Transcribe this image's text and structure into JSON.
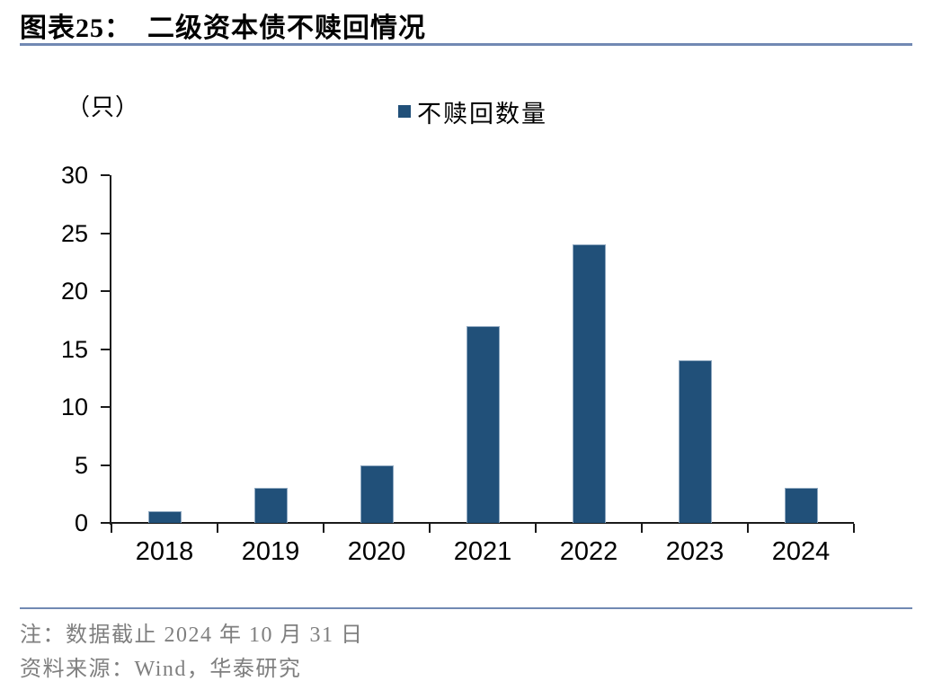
{
  "header": {
    "title": "图表25：  二级资本债不赎回情况"
  },
  "chart_data": {
    "type": "bar",
    "title": "图表25： 二级资本债不赎回情况",
    "unit_label": "（只）",
    "legend": [
      "不赎回数量"
    ],
    "legend_position": "top-center",
    "categories": [
      "2018",
      "2019",
      "2020",
      "2021",
      "2022",
      "2023",
      "2024"
    ],
    "values": [
      1,
      3,
      5,
      17,
      24,
      14,
      3
    ],
    "xlabel": "",
    "ylabel": "（只）",
    "ylim": [
      0,
      30
    ],
    "ytick_step": 5,
    "grid": false,
    "bar_color": "#215079",
    "bar_border_color": "#8FA8C0"
  },
  "footer": {
    "note": "注：数据截止 2024 年 10 月 31 日",
    "source": "资料来源：Wind，华泰研究"
  },
  "colors": {
    "accent_rule": "#7189B3",
    "axis": "#1a1a1a",
    "footer_text": "#7F7F7F"
  }
}
